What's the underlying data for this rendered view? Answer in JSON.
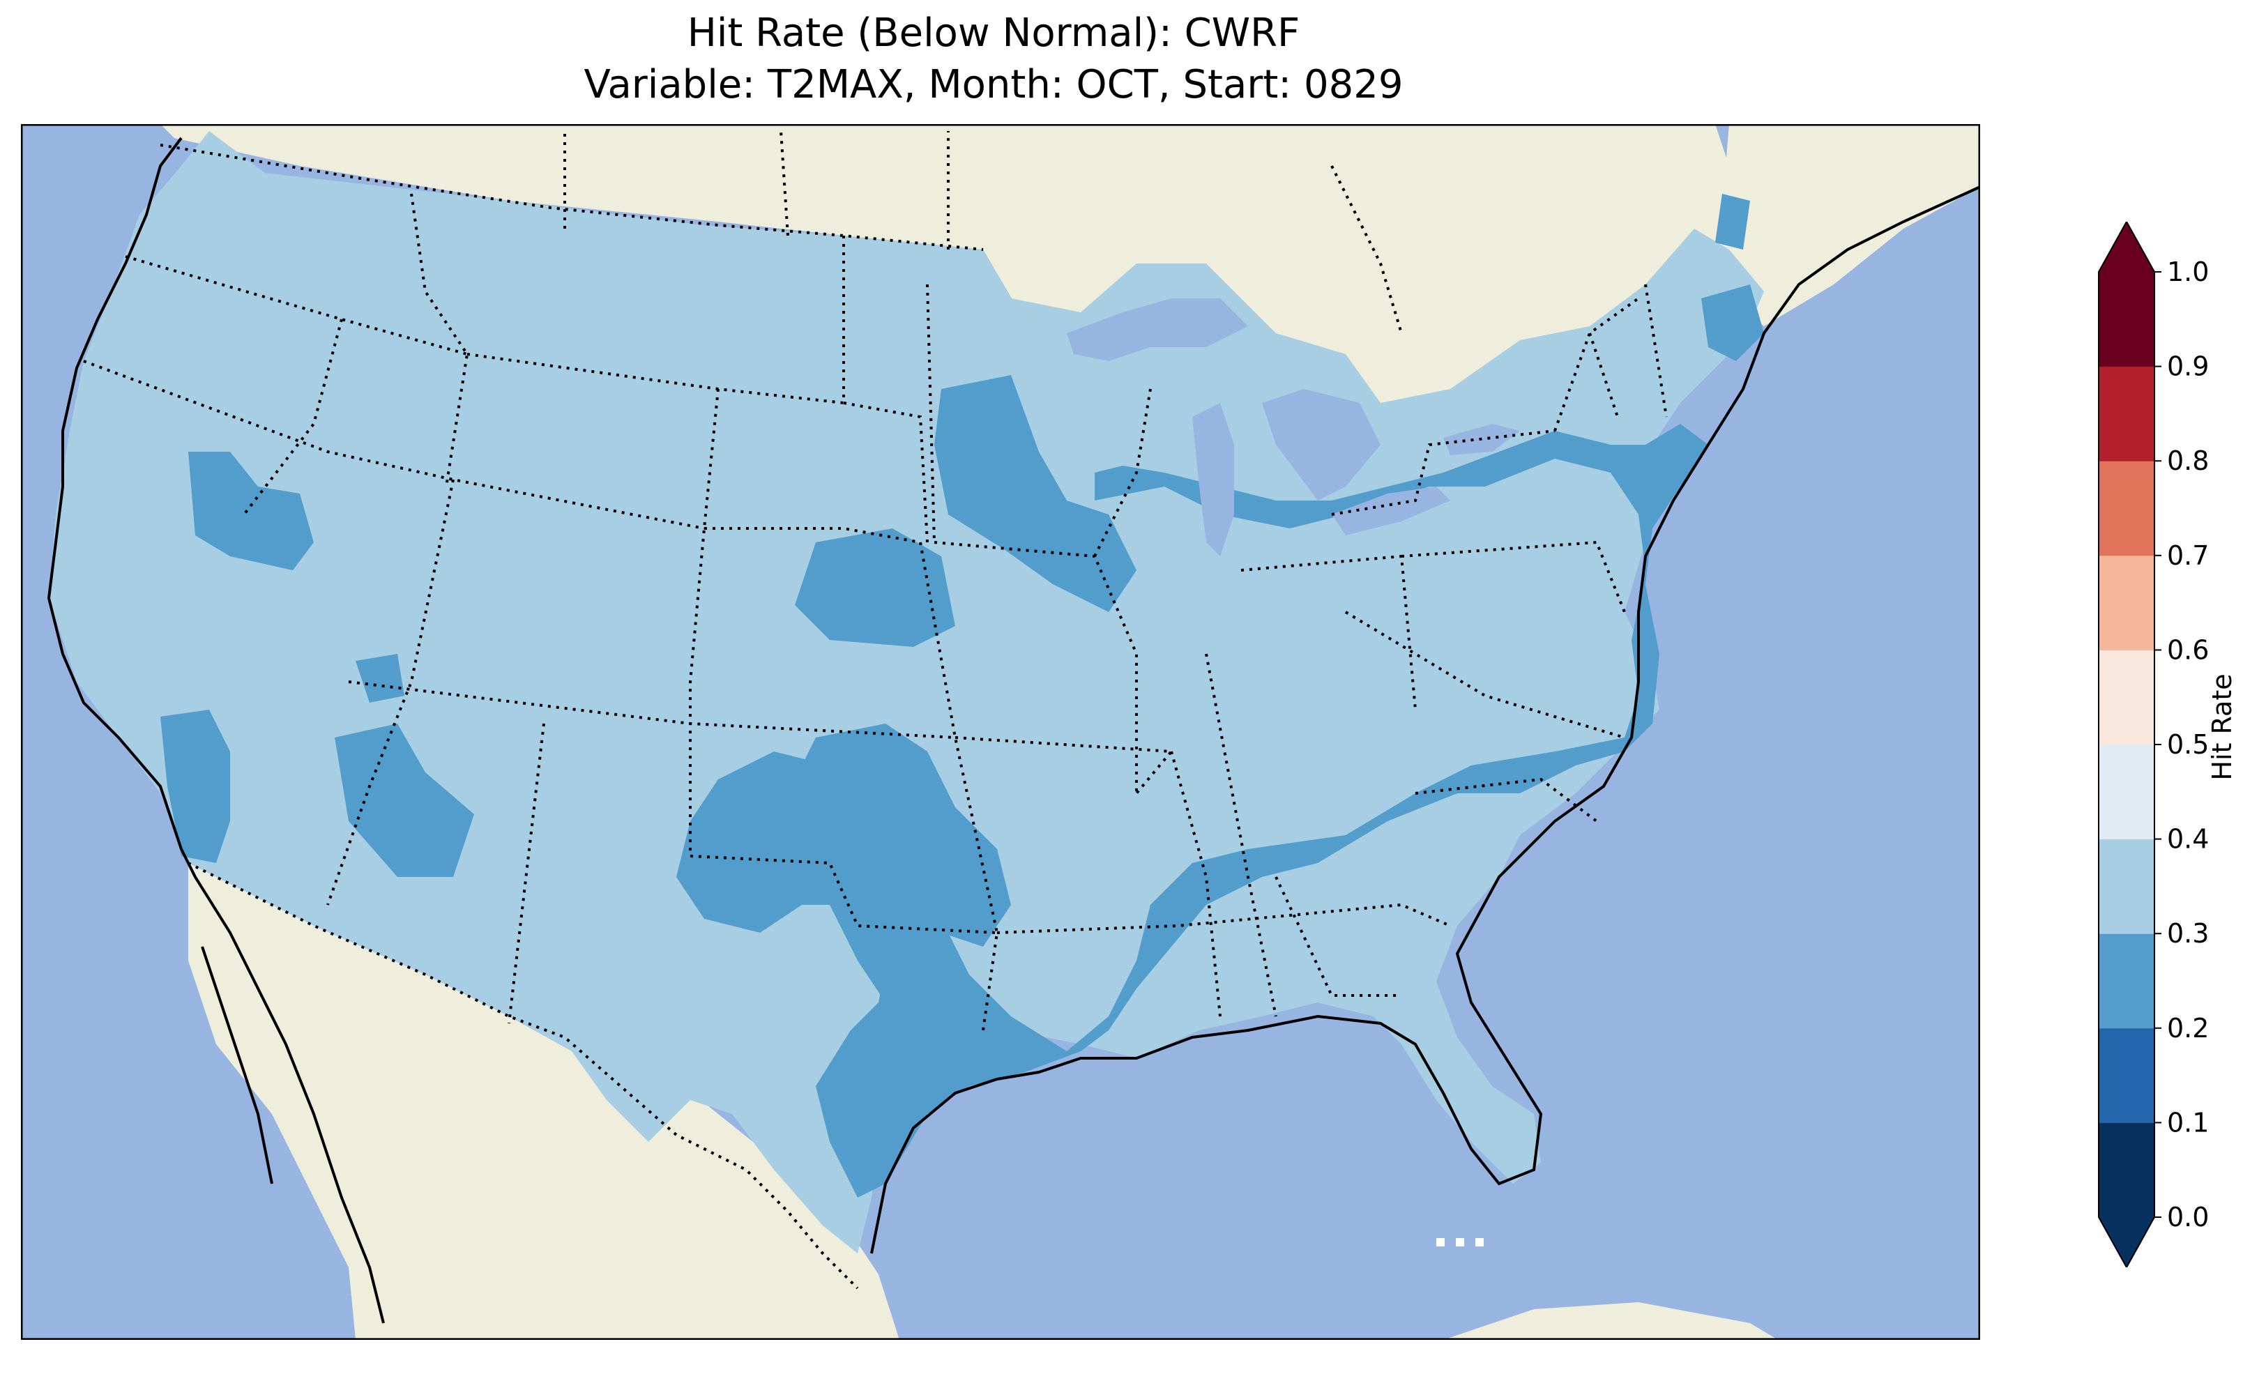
{
  "title": {
    "line1": "Hit Rate (Below Normal): CWRF",
    "line2": "Variable: T2MAX, Month: OCT, Start: 0829"
  },
  "map": {
    "projection": "Lambert Conformal (CONUS)",
    "ocean_color": "#97b5e0",
    "land_color": "#efeddc",
    "grid_fill_light": "#a8cee4",
    "grid_fill_dark": "#529dcb",
    "region": "Contiguous United States"
  },
  "colorbar": {
    "label": "Hit Rate",
    "extend": "both",
    "ticks": [
      "0.0",
      "0.1",
      "0.2",
      "0.3",
      "0.4",
      "0.5",
      "0.6",
      "0.7",
      "0.8",
      "0.9",
      "1.0"
    ],
    "colors": [
      "#053061",
      "#2166ac",
      "#4393c3",
      "#92c5de",
      "#d1e5f0",
      "#f7f7f7",
      "#fddbc7",
      "#f4a582",
      "#d6604d",
      "#b2182b",
      "#67001f"
    ],
    "band_colors": [
      "#08305f",
      "#2366ab",
      "#529dcb",
      "#a8cee4",
      "#e0ebf3",
      "#f8e6dc",
      "#f4b799",
      "#e0735a",
      "#b41f2e",
      "#6a001f"
    ]
  }
}
